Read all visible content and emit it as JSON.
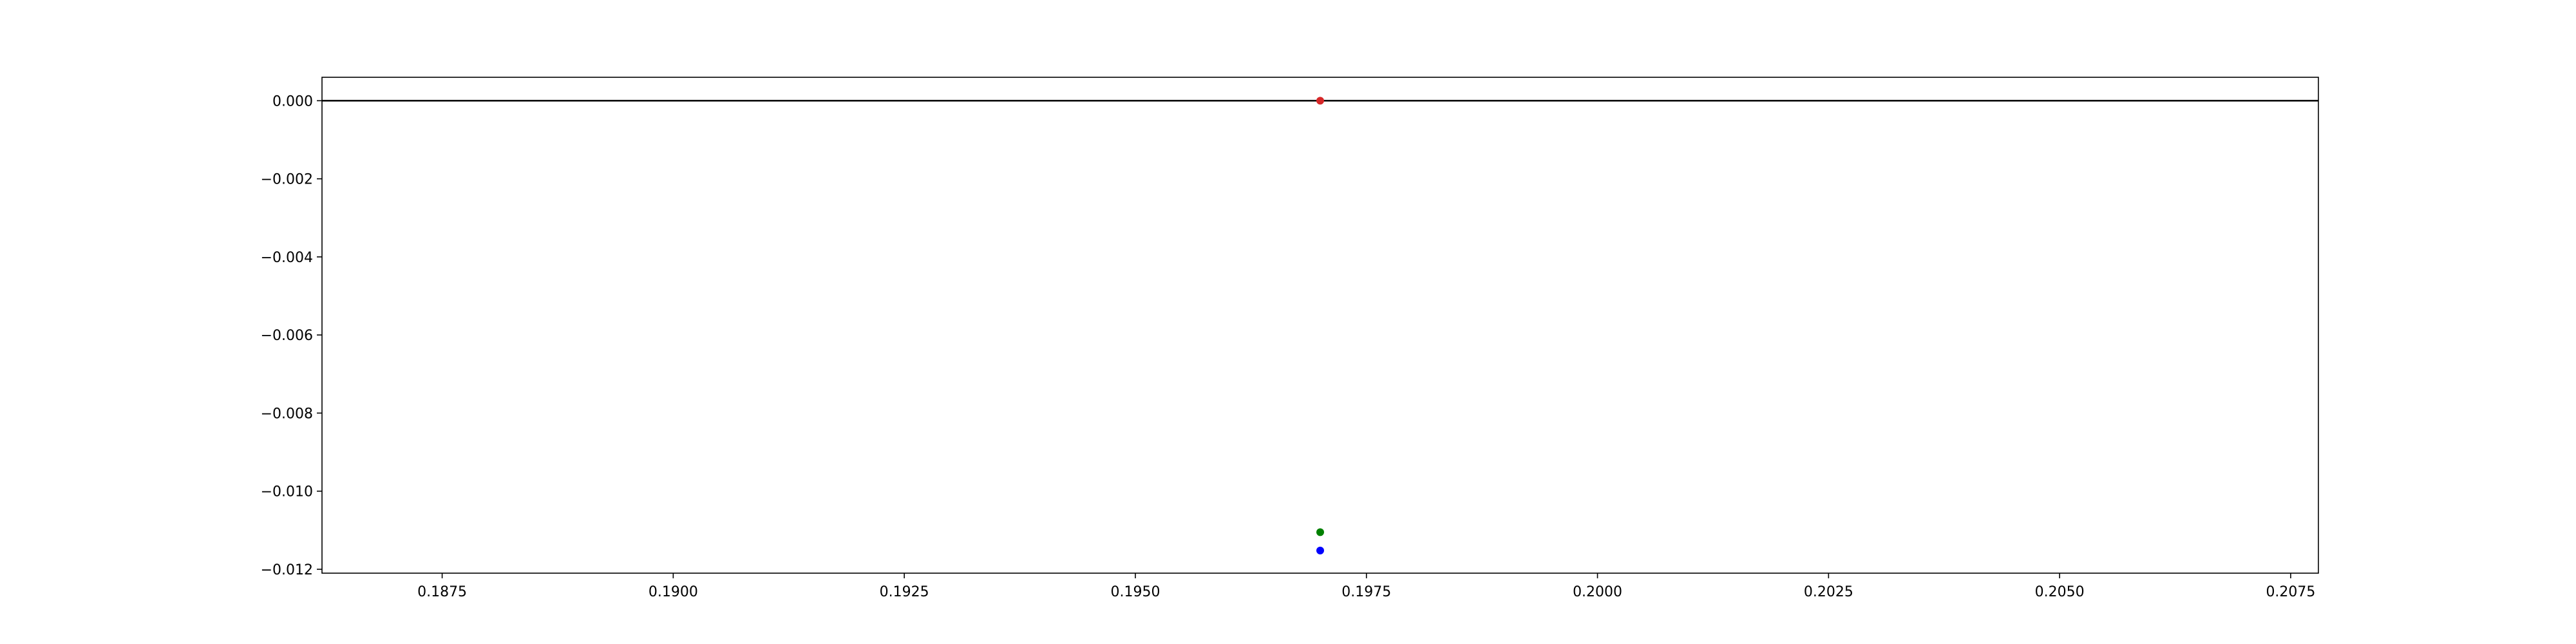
{
  "chart_data": {
    "type": "scatter",
    "title": "",
    "xlabel": "",
    "ylabel": "",
    "xlim": [
      0.1862,
      0.2078
    ],
    "ylim": [
      -0.0121,
      0.0006
    ],
    "grid": false,
    "legend": "none",
    "x_ticks": [
      {
        "value": 0.1875,
        "label": "0.1875"
      },
      {
        "value": 0.19,
        "label": "0.1900"
      },
      {
        "value": 0.1925,
        "label": "0.1925"
      },
      {
        "value": 0.195,
        "label": "0.1950"
      },
      {
        "value": 0.1975,
        "label": "0.1975"
      },
      {
        "value": 0.2,
        "label": "0.2000"
      },
      {
        "value": 0.2025,
        "label": "0.2025"
      },
      {
        "value": 0.205,
        "label": "0.2050"
      },
      {
        "value": 0.2075,
        "label": "0.2075"
      }
    ],
    "y_ticks": [
      {
        "value": 0.0,
        "label": "0.000"
      },
      {
        "value": -0.002,
        "label": "−0.002"
      },
      {
        "value": -0.004,
        "label": "−0.004"
      },
      {
        "value": -0.006,
        "label": "−0.006"
      },
      {
        "value": -0.008,
        "label": "−0.008"
      },
      {
        "value": -0.01,
        "label": "−0.010"
      },
      {
        "value": -0.012,
        "label": "−0.012"
      }
    ],
    "hline": {
      "y": 0.0,
      "color": "#000000"
    },
    "series": [
      {
        "color": "#d62728",
        "points": [
          {
            "x": 0.197,
            "y": 0.0
          }
        ]
      },
      {
        "color": "#008000",
        "points": [
          {
            "x": 0.197,
            "y": -0.01105
          }
        ]
      },
      {
        "color": "#0000ff",
        "points": [
          {
            "x": 0.197,
            "y": -0.01152
          }
        ]
      }
    ]
  }
}
